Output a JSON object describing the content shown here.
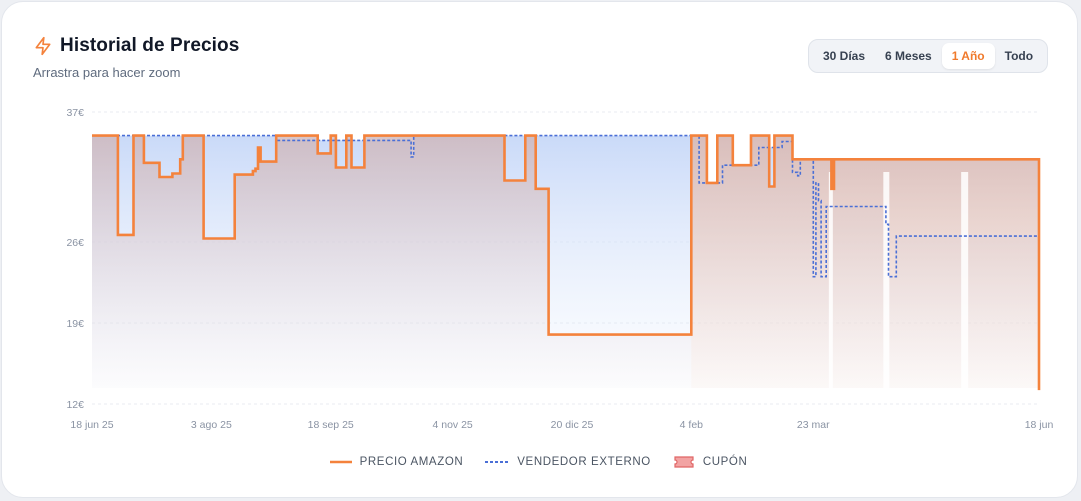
{
  "header": {
    "title": "Historial de Precios",
    "subtitle": "Arrastra para hacer zoom",
    "icon": "lightning-icon"
  },
  "range_buttons": [
    {
      "label": "30 Días",
      "active": false
    },
    {
      "label": "6 Meses",
      "active": false
    },
    {
      "label": "1 Año",
      "active": true
    },
    {
      "label": "Todo",
      "active": false
    }
  ],
  "legend": {
    "amazon": "PRECIO AMAZON",
    "external": "VENDEDOR EXTERNO",
    "coupon": "CUPÓN"
  },
  "colors": {
    "amazon": "#f4823c",
    "external": "#4a6fd6",
    "coupon": "#f08a8a",
    "accent": "#f07a2c"
  },
  "chart_data": {
    "type": "line",
    "step": true,
    "title": "Historial de Precios",
    "xlabel": "",
    "ylabel": "",
    "ylim": [
      12,
      37
    ],
    "yticks": [
      {
        "value": 37,
        "label": "37€"
      },
      {
        "value": 26,
        "label": "26€"
      },
      {
        "value": 19,
        "label": "19€"
      },
      {
        "value": 12,
        "label": "12€"
      }
    ],
    "xlim": [
      "2025-06-18",
      "2026-06-18"
    ],
    "xticks": [
      {
        "date": "2025-06-18",
        "label": "18 jun 25"
      },
      {
        "date": "2025-08-03",
        "label": "3 ago 25"
      },
      {
        "date": "2025-09-18",
        "label": "18 sep 25"
      },
      {
        "date": "2025-11-04",
        "label": "4 nov 25"
      },
      {
        "date": "2025-12-20",
        "label": "20 dic 25"
      },
      {
        "date": "2026-02-04",
        "label": "4 feb"
      },
      {
        "date": "2026-03-23",
        "label": "23 mar"
      },
      {
        "date": "2026-06-18",
        "label": "18 jun"
      }
    ],
    "grid": true,
    "legend_position": "bottom",
    "series": [
      {
        "name": "PRECIO AMAZON",
        "points": [
          [
            "2025-06-18",
            35
          ],
          [
            "2025-06-28",
            26.6
          ],
          [
            "2025-07-04",
            35
          ],
          [
            "2025-07-08",
            32.7
          ],
          [
            "2025-07-14",
            31.5
          ],
          [
            "2025-07-19",
            31.8
          ],
          [
            "2025-07-22",
            33
          ],
          [
            "2025-07-23",
            35
          ],
          [
            "2025-07-31",
            26.3
          ],
          [
            "2025-08-12",
            31.7
          ],
          [
            "2025-08-19",
            32
          ],
          [
            "2025-08-20",
            32.2
          ],
          [
            "2025-08-21",
            34
          ],
          [
            "2025-08-22",
            32.8
          ],
          [
            "2025-08-28",
            35
          ],
          [
            "2025-09-13",
            33.5
          ],
          [
            "2025-09-18",
            35
          ],
          [
            "2025-09-20",
            32.3
          ],
          [
            "2025-09-24",
            35
          ],
          [
            "2025-09-26",
            32.3
          ],
          [
            "2025-10-01",
            35
          ],
          [
            "2025-11-10",
            35
          ],
          [
            "2025-11-24",
            31.2
          ],
          [
            "2025-12-02",
            35
          ],
          [
            "2025-12-06",
            30.5
          ],
          [
            "2025-12-11",
            18
          ],
          [
            "2026-02-04",
            35
          ],
          [
            "2026-02-10",
            31
          ],
          [
            "2026-02-13",
            31
          ],
          [
            "2026-02-14",
            35
          ],
          [
            "2026-02-20",
            32.5
          ],
          [
            "2026-02-27",
            35
          ],
          [
            "2026-03-06",
            30.7
          ],
          [
            "2026-03-08",
            35
          ],
          [
            "2026-03-15",
            33
          ],
          [
            "2026-03-30",
            30.5
          ],
          [
            "2026-03-31",
            33
          ],
          [
            "2026-06-18",
            13.2
          ]
        ]
      },
      {
        "name": "VENDEDOR EXTERNO",
        "points": [
          [
            "2025-06-18",
            35
          ],
          [
            "2025-08-28",
            34.6
          ],
          [
            "2025-10-19",
            33.2
          ],
          [
            "2025-10-20",
            35
          ],
          [
            "2026-02-07",
            31
          ],
          [
            "2026-02-16",
            32.5
          ],
          [
            "2026-03-02",
            34
          ],
          [
            "2026-03-11",
            34.5
          ],
          [
            "2026-03-15",
            31.9
          ],
          [
            "2026-03-17",
            31.6
          ],
          [
            "2026-03-18",
            33
          ],
          [
            "2026-03-22",
            33
          ],
          [
            "2026-03-23",
            23
          ],
          [
            "2026-03-24",
            31
          ],
          [
            "2026-03-25",
            29.5
          ],
          [
            "2026-03-26",
            23
          ],
          [
            "2026-03-28",
            29
          ],
          [
            "2026-04-20",
            27.5
          ],
          [
            "2026-04-21",
            23
          ],
          [
            "2026-04-24",
            26.5
          ],
          [
            "2026-06-18",
            26.5
          ]
        ]
      }
    ]
  }
}
